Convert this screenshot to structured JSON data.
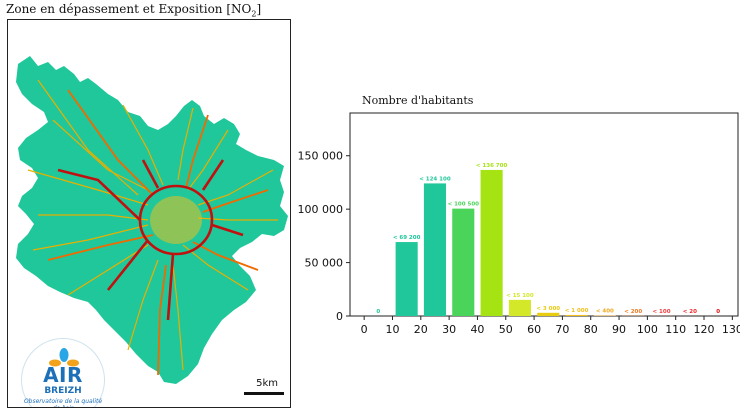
{
  "figure": {
    "title_text": "Zone en dépassement et Exposition [NO",
    "title_sub": "2",
    "title_close": "]"
  },
  "map": {
    "scale_label": "5km",
    "colors": {
      "area": "#1fc79a",
      "road_major": "#c01010",
      "road_minor": "#e8b000",
      "road_mid": "#f06a00"
    }
  },
  "logo": {
    "line1": "AIR",
    "line2": "BREIZH",
    "slogan": "Observatoire de la qualité de l'air"
  },
  "chart_data": {
    "type": "bar",
    "title": "Nombre d'habitants",
    "xlabel": "",
    "ylabel": "",
    "x": [
      5,
      15,
      25,
      35,
      45,
      55,
      65,
      75,
      85,
      95,
      105,
      115,
      125
    ],
    "values": [
      0,
      69200,
      124100,
      100500,
      136700,
      15100,
      3000,
      1000,
      400,
      200,
      100,
      20,
      0
    ],
    "labels": [
      "0",
      "< 69 200",
      "< 124 100",
      "< 100 500",
      "< 136 700",
      "< 15 100",
      "< 3 000",
      "< 1 000",
      "< 400",
      "< 200",
      "< 100",
      "< 20",
      "0"
    ],
    "colors": [
      "#1fc79a",
      "#1fc79a",
      "#1fc79a",
      "#4bd45a",
      "#a6e312",
      "#d4e82a",
      "#e8cc10",
      "#f0c020",
      "#f0a820",
      "#f07a20",
      "#f04040",
      "#f02828",
      "#e01010"
    ],
    "xlim": [
      -5,
      132
    ],
    "ylim": [
      0,
      190000
    ],
    "xticks": [
      0,
      10,
      20,
      30,
      40,
      50,
      60,
      70,
      80,
      90,
      100,
      110,
      120,
      130
    ],
    "yticks": [
      0,
      50000,
      100000,
      150000
    ],
    "ytick_labels": [
      "0",
      "50 000",
      "100 000",
      "150 000"
    ],
    "grid": false
  }
}
